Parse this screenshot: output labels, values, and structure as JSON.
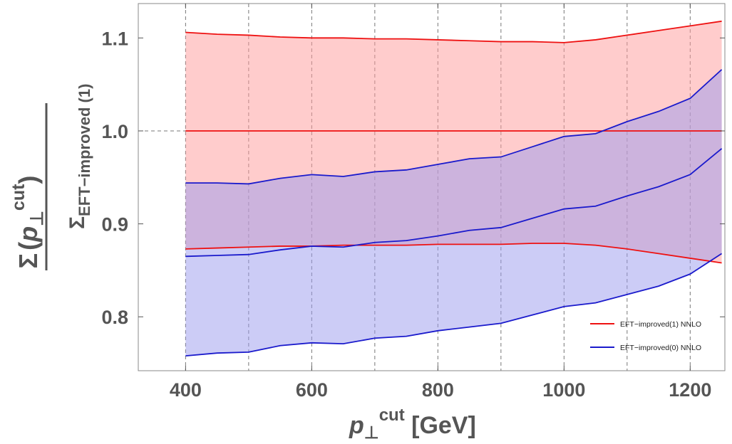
{
  "chart_data": {
    "type": "area",
    "xlabel": {
      "main": "p",
      "sub": "⊥",
      "sup": "cut",
      "unit": " [GeV]"
    },
    "ylabel": {
      "numerator": {
        "sigma": "Σ",
        "open": "(",
        "p": "p",
        "sub": "⊥",
        "sup": "cut",
        "close": ")"
      },
      "denominator": {
        "sigma": "Σ",
        "sub": "EFT−improved (1)"
      }
    },
    "xlim": [
      325,
      1255
    ],
    "ylim": [
      0.742,
      1.137
    ],
    "x_ticks": [
      400,
      600,
      800,
      1000,
      1200
    ],
    "y_ticks": [
      0.8,
      0.9,
      1.0,
      1.1
    ],
    "x_tick_labels": [
      "400",
      "600",
      "800",
      "1000",
      "1200"
    ],
    "y_tick_labels": [
      "0.8",
      "0.9",
      "1.0",
      "1.1"
    ],
    "vertical_gridlines": [
      400,
      500,
      600,
      700,
      800,
      900,
      1000,
      1100,
      1200
    ],
    "horizontal_reference": 1.0,
    "x": [
      400,
      450,
      500,
      550,
      600,
      650,
      700,
      750,
      800,
      850,
      900,
      950,
      1000,
      1050,
      1100,
      1150,
      1200,
      1250
    ],
    "series": [
      {
        "name": "EFT−improved(1) NNLO",
        "color": "#ee1111",
        "fill": "#ff9999",
        "central": [
          1.0,
          1.0,
          1.0,
          1.0,
          1.0,
          1.0,
          1.0,
          1.0,
          1.0,
          1.0,
          1.0,
          1.0,
          1.0,
          1.0,
          1.0,
          1.0,
          1.0,
          1.0
        ],
        "upper": [
          1.106,
          1.104,
          1.103,
          1.101,
          1.1,
          1.1,
          1.099,
          1.099,
          1.098,
          1.097,
          1.096,
          1.096,
          1.095,
          1.098,
          1.103,
          1.108,
          1.113,
          1.118
        ],
        "lower": [
          0.873,
          0.874,
          0.875,
          0.876,
          0.876,
          0.877,
          0.877,
          0.877,
          0.878,
          0.878,
          0.878,
          0.879,
          0.879,
          0.877,
          0.873,
          0.868,
          0.863,
          0.858
        ]
      },
      {
        "name": "EFT−improved(0) NNLO",
        "color": "#1a1acc",
        "fill": "#9999ee",
        "central": [
          0.865,
          0.866,
          0.867,
          0.872,
          0.876,
          0.875,
          0.88,
          0.882,
          0.887,
          0.893,
          0.896,
          0.906,
          0.916,
          0.919,
          0.93,
          0.94,
          0.953,
          0.981
        ],
        "upper": [
          0.944,
          0.944,
          0.943,
          0.949,
          0.953,
          0.951,
          0.956,
          0.958,
          0.964,
          0.97,
          0.972,
          0.983,
          0.994,
          0.997,
          1.01,
          1.021,
          1.035,
          1.066
        ],
        "lower": [
          0.758,
          0.761,
          0.762,
          0.769,
          0.772,
          0.771,
          0.777,
          0.779,
          0.785,
          0.789,
          0.793,
          0.802,
          0.811,
          0.815,
          0.824,
          0.833,
          0.846,
          0.868
        ]
      }
    ],
    "legend": {
      "placement": "bottom-right"
    }
  }
}
